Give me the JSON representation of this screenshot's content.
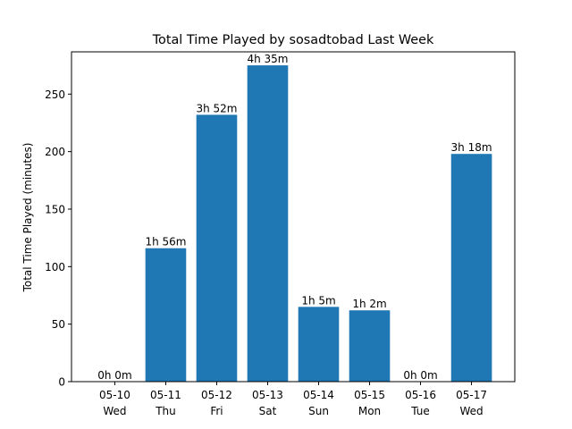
{
  "chart_data": {
    "type": "bar",
    "title": "Total Time Played by sosadtobad Last Week",
    "xlabel": "",
    "ylabel": "Total Time Played (minutes)",
    "ylim": [
      0,
      286.75
    ],
    "yticks": [
      0,
      50,
      100,
      150,
      200,
      250
    ],
    "grid": false,
    "categories": [
      {
        "date": "05-10",
        "day": "Wed"
      },
      {
        "date": "05-11",
        "day": "Thu"
      },
      {
        "date": "05-12",
        "day": "Fri"
      },
      {
        "date": "05-13",
        "day": "Sat"
      },
      {
        "date": "05-14",
        "day": "Sun"
      },
      {
        "date": "05-15",
        "day": "Mon"
      },
      {
        "date": "05-16",
        "day": "Tue"
      },
      {
        "date": "05-17",
        "day": "Wed"
      }
    ],
    "values": [
      0,
      116,
      232,
      275,
      65,
      62,
      0,
      198
    ],
    "data_labels": [
      "0h 0m",
      "1h 56m",
      "3h 52m",
      "4h 35m",
      "1h 5m",
      "1h 2m",
      "0h 0m",
      "3h 18m"
    ],
    "bar_color": "#1f77b4"
  }
}
